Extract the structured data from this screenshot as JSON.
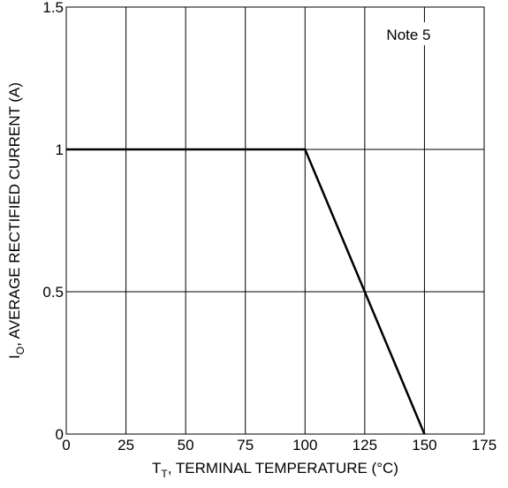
{
  "chart_data": {
    "type": "line",
    "series": [
      {
        "x": [
          0,
          100,
          150
        ],
        "y": [
          1,
          1,
          0
        ]
      }
    ],
    "xlim": [
      0,
      175
    ],
    "ylim": [
      0,
      1.5
    ],
    "x_ticks": [
      0,
      25,
      50,
      75,
      100,
      125,
      150,
      175
    ],
    "y_ticks": [
      0,
      0.5,
      1,
      1.5
    ],
    "x_tick_labels": [
      "0",
      "25",
      "50",
      "75",
      "100",
      "125",
      "150",
      "175"
    ],
    "y_tick_labels": [
      "0",
      "0.5",
      "1",
      "1.5"
    ],
    "xlabel": {
      "main": "T",
      "sub": "T",
      "rest": ", TERMINAL TEMPERATURE (°C)"
    },
    "ylabel": {
      "main": "I",
      "sub": "O",
      "rest": ", AVERAGE RECTIFIED CURRENT (A)"
    },
    "grid": true,
    "annotations": [
      {
        "text": "Note 5"
      }
    ],
    "colors": {
      "line": "#000000",
      "grid": "#000000",
      "background": "#ffffff"
    }
  }
}
